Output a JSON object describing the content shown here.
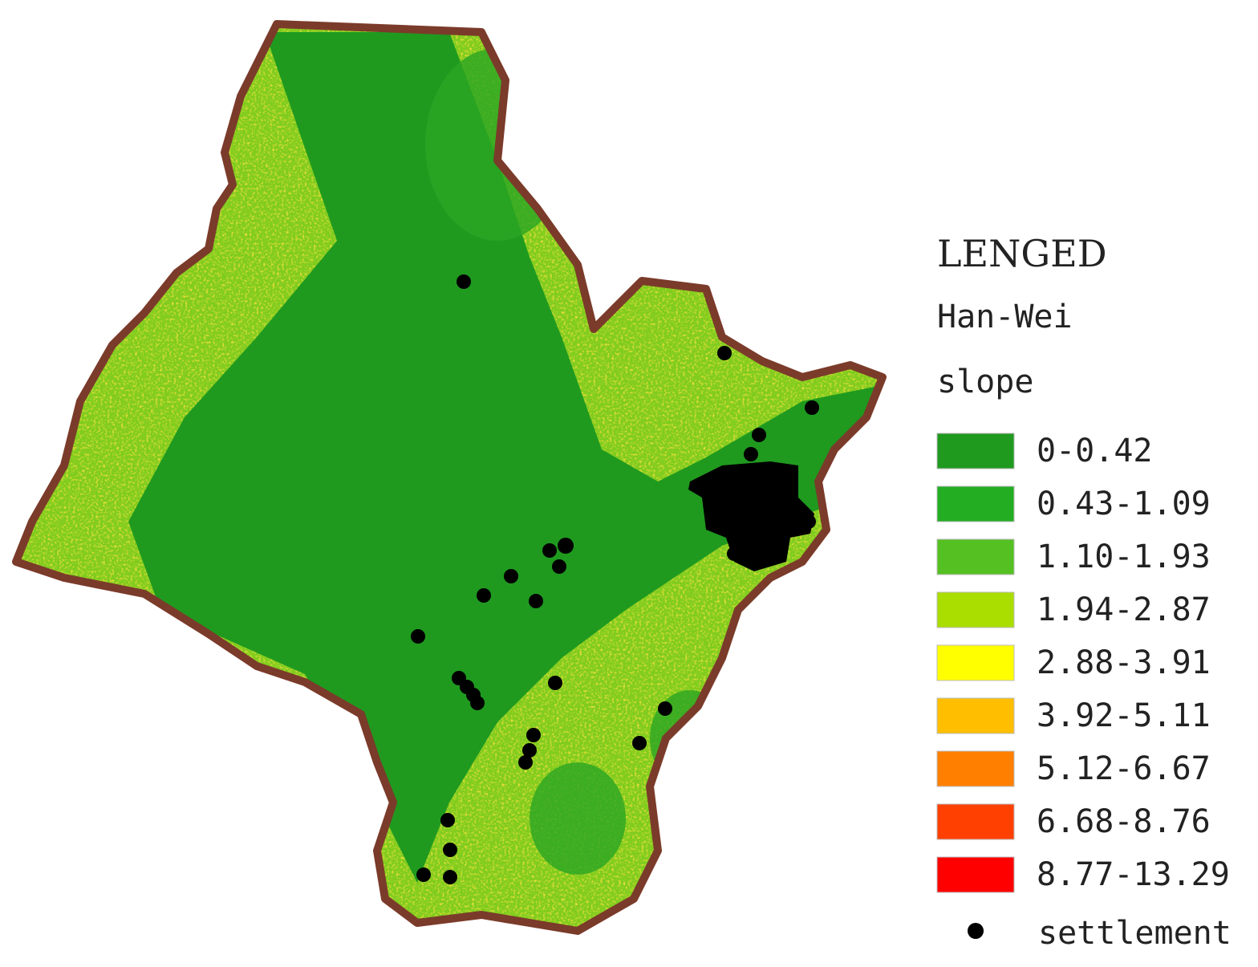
{
  "legend": {
    "title": "LENGED",
    "subtitle": "Han-Wei",
    "variable": "slope",
    "classes": [
      {
        "label": "0-0.42",
        "color": "#1f9a1f"
      },
      {
        "label": "0.43-1.09",
        "color": "#22ad22"
      },
      {
        "label": "1.10-1.93",
        "color": "#55c022"
      },
      {
        "label": "1.94-2.87",
        "color": "#aadd00"
      },
      {
        "label": "2.88-3.91",
        "color": "#ffff00"
      },
      {
        "label": "3.92-5.11",
        "color": "#ffbf00"
      },
      {
        "label": "5.12-6.67",
        "color": "#ff8000"
      },
      {
        "label": "6.68-8.76",
        "color": "#ff4000"
      },
      {
        "label": "8.77-13.29",
        "color": "#ff0000"
      }
    ],
    "point_label": "settlement"
  }
}
